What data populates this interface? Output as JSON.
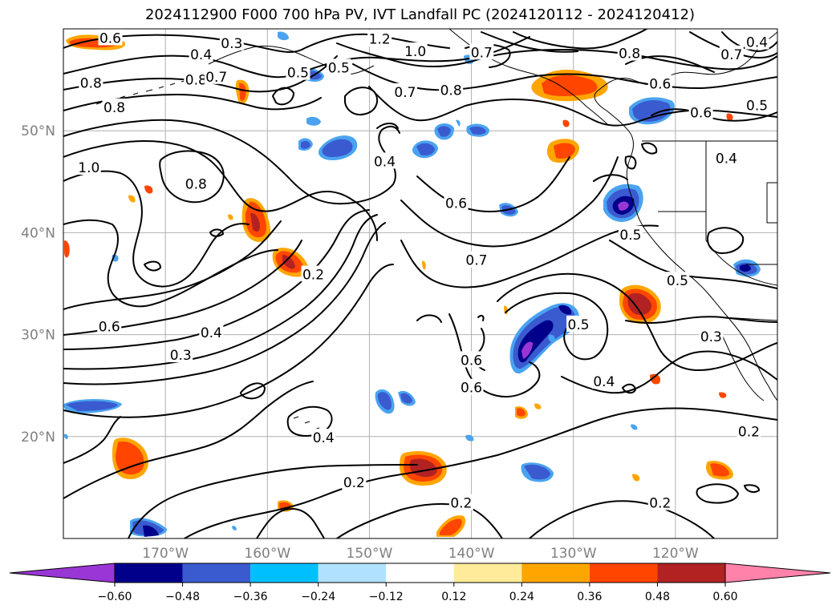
{
  "title": "2024112900 F000 700 hPa PV, IVT Landfall PC (2024120112 - 2024120412)",
  "map": {
    "extent": {
      "lon_west": -180,
      "lon_east": -110,
      "lat_south": 10,
      "lat_north": 60
    },
    "lat_gridlines": [
      20,
      30,
      40,
      50
    ],
    "lon_gridlines": [
      -170,
      -160,
      -150,
      -140,
      -130,
      -120
    ],
    "lat_labels": [
      "20°N",
      "30°N",
      "40°N",
      "50°N"
    ],
    "lon_labels": [
      "170°W",
      "160°W",
      "150°W",
      "140°W",
      "130°W",
      "120°W"
    ],
    "grid_color": "#b0b0b0",
    "contour_color": "#000000",
    "contour_labels": [
      {
        "text": "0.6",
        "lon": -175.4,
        "lat": 59.1
      },
      {
        "text": "0.3",
        "lon": -163.5,
        "lat": 58.6
      },
      {
        "text": "0.4",
        "lon": -166.5,
        "lat": 57.5
      },
      {
        "text": "1.2",
        "lon": -149.0,
        "lat": 59.0
      },
      {
        "text": "1.0",
        "lon": -145.5,
        "lat": 57.8
      },
      {
        "text": "0.7",
        "lon": -139.0,
        "lat": 57.7
      },
      {
        "text": "0.8",
        "lon": -167.0,
        "lat": 55.0
      },
      {
        "text": "0.7",
        "lon": -165.0,
        "lat": 55.3
      },
      {
        "text": "0.5",
        "lon": -157.0,
        "lat": 55.7
      },
      {
        "text": "0.5",
        "lon": -153.0,
        "lat": 56.2
      },
      {
        "text": "0.8",
        "lon": -177.3,
        "lat": 54.7
      },
      {
        "text": "0.8",
        "lon": -175.0,
        "lat": 52.3
      },
      {
        "text": "0.7",
        "lon": -146.5,
        "lat": 53.8
      },
      {
        "text": "0.8",
        "lon": -142.0,
        "lat": 54.0
      },
      {
        "text": "0.8",
        "lon": -124.5,
        "lat": 57.6
      },
      {
        "text": "0.6",
        "lon": -121.5,
        "lat": 54.6
      },
      {
        "text": "0.7",
        "lon": -114.5,
        "lat": 57.5
      },
      {
        "text": "0.6",
        "lon": -117.5,
        "lat": 51.8
      },
      {
        "text": "0.5",
        "lon": -112.0,
        "lat": 52.5
      },
      {
        "text": "0.4",
        "lon": -112.0,
        "lat": 58.7
      },
      {
        "text": "0.4",
        "lon": -115.0,
        "lat": 47.3
      },
      {
        "text": "1.0",
        "lon": -177.5,
        "lat": 46.4
      },
      {
        "text": "0.8",
        "lon": -167.0,
        "lat": 44.8
      },
      {
        "text": "0.4",
        "lon": -148.5,
        "lat": 47.0
      },
      {
        "text": "0.6",
        "lon": -141.5,
        "lat": 42.9
      },
      {
        "text": "0.5",
        "lon": -124.4,
        "lat": 39.8
      },
      {
        "text": "0.7",
        "lon": -139.5,
        "lat": 37.3
      },
      {
        "text": "0.2",
        "lon": -155.5,
        "lat": 35.9
      },
      {
        "text": "0.5",
        "lon": -119.8,
        "lat": 35.3
      },
      {
        "text": "0.6",
        "lon": -175.5,
        "lat": 30.8
      },
      {
        "text": "0.4",
        "lon": -165.5,
        "lat": 30.2
      },
      {
        "text": "0.3",
        "lon": -168.5,
        "lat": 28.0
      },
      {
        "text": "0.5",
        "lon": -129.5,
        "lat": 31.0
      },
      {
        "text": "0.3",
        "lon": -116.5,
        "lat": 29.8
      },
      {
        "text": "0.6",
        "lon": -140.0,
        "lat": 27.5
      },
      {
        "text": "0.6",
        "lon": -140.0,
        "lat": 24.8
      },
      {
        "text": "0.4",
        "lon": -127.0,
        "lat": 25.4
      },
      {
        "text": "0.4",
        "lon": -154.5,
        "lat": 19.9
      },
      {
        "text": "0.2",
        "lon": -112.8,
        "lat": 20.5
      },
      {
        "text": "0.2",
        "lon": -151.5,
        "lat": 15.5
      },
      {
        "text": "0.2",
        "lon": -141.0,
        "lat": 13.5
      },
      {
        "text": "0.2",
        "lon": -121.5,
        "lat": 13.5
      }
    ]
  },
  "colorbar": {
    "levels": [
      -0.72,
      -0.6,
      -0.48,
      -0.36,
      -0.24,
      -0.12,
      0.12,
      0.24,
      0.36,
      0.48,
      0.6,
      0.72
    ],
    "colors": [
      "#9a36d6",
      "#00008b",
      "#3a5bd0",
      "#00bfff",
      "#b0e2ff",
      "#ffffff",
      "#ffeb99",
      "#ffa500",
      "#ff4500",
      "#b22222",
      "#ff82ab"
    ],
    "ticks": [
      "−0.60",
      "−0.48",
      "−0.36",
      "−0.24",
      "−0.12",
      "0.12",
      "0.24",
      "0.36",
      "0.48",
      "0.60"
    ],
    "extend": "both"
  },
  "shading_colors": {
    "neg_light": "#4aa3f0",
    "neg_mid": "#3a5bd0",
    "neg_strong": "#00008b",
    "neg_extreme": "#9a36d6",
    "pos_light": "#ffa500",
    "pos_mid": "#ff4500",
    "pos_strong": "#b22222"
  }
}
